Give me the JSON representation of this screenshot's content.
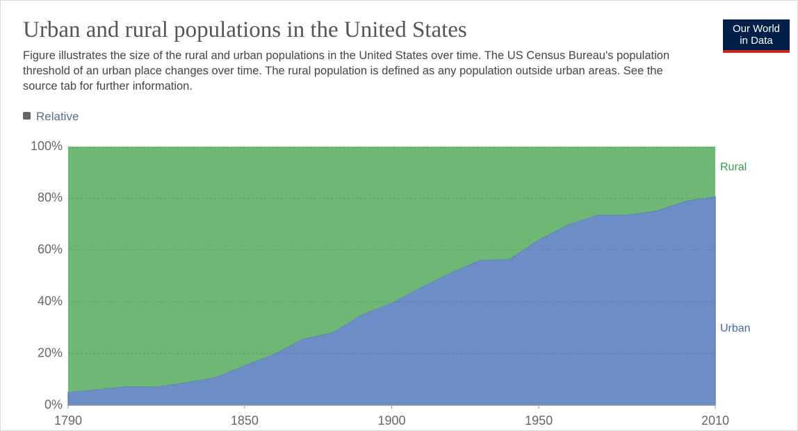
{
  "chart_data": {
    "type": "stacked_area",
    "title": "Urban and rural populations in the United States",
    "subtitle": "Figure illustrates the size of the rural and urban populations in the United States over time. The US Census Bureau's population threshold of an urban place changes over time. The rural population is defined as any population outside urban areas. See the source tab for further information.",
    "logo": [
      "Our World",
      "in Data"
    ],
    "toggle_label": "Relative",
    "x": [
      1790,
      1800,
      1810,
      1820,
      1830,
      1840,
      1850,
      1860,
      1870,
      1880,
      1890,
      1900,
      1910,
      1920,
      1930,
      1940,
      1950,
      1960,
      1970,
      1980,
      1990,
      2000,
      2010
    ],
    "series": [
      {
        "name": "Urban",
        "color": "#6d8dc5",
        "values": [
          5.1,
          6.1,
          7.3,
          7.2,
          8.8,
          10.8,
          15.4,
          19.8,
          25.7,
          28.2,
          35.1,
          39.6,
          45.6,
          51.2,
          56.1,
          56.5,
          64.0,
          69.9,
          73.6,
          73.7,
          75.2,
          79.0,
          80.7
        ]
      },
      {
        "name": "Rural",
        "color": "#6fb776",
        "values": [
          94.9,
          93.9,
          92.7,
          92.8,
          91.2,
          89.2,
          84.6,
          80.2,
          74.3,
          71.8,
          64.9,
          60.4,
          54.4,
          48.8,
          43.9,
          43.5,
          36.0,
          30.1,
          26.4,
          26.3,
          24.8,
          21.0,
          19.3
        ]
      }
    ],
    "xlim": [
      1790,
      2010
    ],
    "xticks": [
      1790,
      1850,
      1900,
      1950,
      2010
    ],
    "ylim": [
      0,
      100
    ],
    "yticks": [
      {
        "value": 0,
        "label": "0%"
      },
      {
        "value": 20,
        "label": "20%"
      },
      {
        "value": 40,
        "label": "40%"
      },
      {
        "value": 60,
        "label": "60%"
      },
      {
        "value": 80,
        "label": "80%"
      },
      {
        "value": 100,
        "label": "100%"
      }
    ],
    "grid": true
  }
}
